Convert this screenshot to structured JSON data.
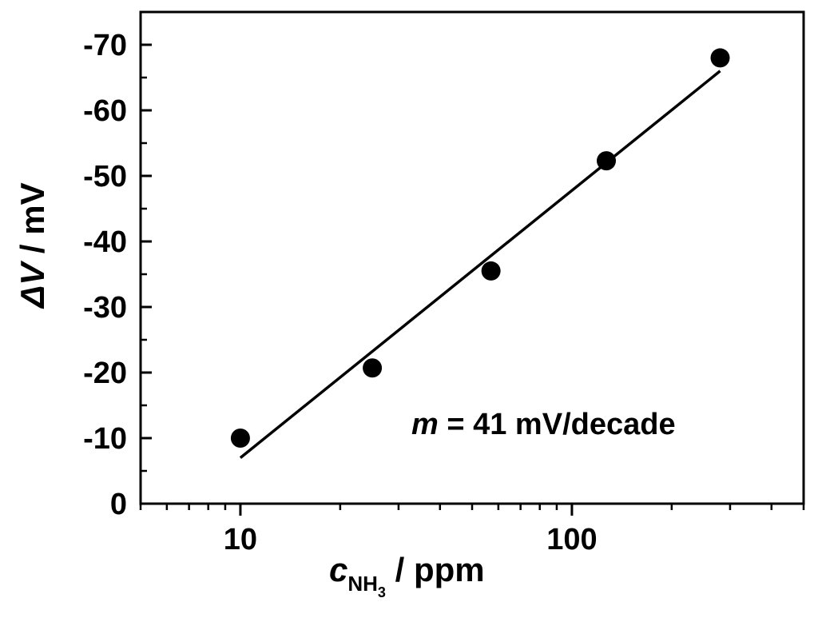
{
  "chart_data": {
    "type": "scatter",
    "title": "",
    "x_scale": "log",
    "xlim": [
      5,
      500
    ],
    "ylim": [
      0,
      -75
    ],
    "y_inverted": true,
    "x_ticks": [
      10,
      100
    ],
    "x_tick_labels": [
      "10",
      "100"
    ],
    "y_ticks": [
      0,
      -10,
      -20,
      -30,
      -40,
      -50,
      -60,
      -70
    ],
    "y_tick_labels": [
      "0",
      "-10",
      "-20",
      "-30",
      "-40",
      "-50",
      "-60",
      "-70"
    ],
    "xlabel": {
      "main": "c",
      "sub": "NH",
      "subsub": "3",
      "unit": " / ppm"
    },
    "ylabel": {
      "main": "ΔV",
      "unit": " / mV"
    },
    "grid": false,
    "series": [
      {
        "kind": "points",
        "marker": "circle",
        "color": "#000000",
        "x": [
          10,
          25,
          57,
          127,
          280
        ],
        "y": [
          -10,
          -20.7,
          -35.5,
          -52.3,
          -68
        ]
      },
      {
        "kind": "fit-line",
        "color": "#000000",
        "x": [
          10,
          280
        ],
        "y": [
          -7,
          -66
        ]
      }
    ],
    "annotation": {
      "var": "m",
      "text": " = 41 mV/decade"
    }
  }
}
